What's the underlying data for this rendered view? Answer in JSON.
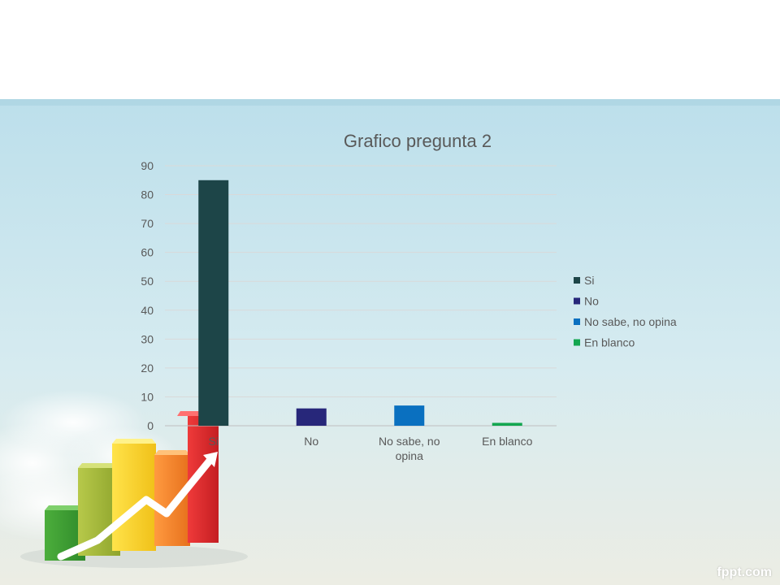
{
  "slide": {
    "brand": "fppt.com",
    "colors": {
      "sky_top": "#c3e2ee",
      "sky_bottom": "#eceee6",
      "header": "#ffffff"
    }
  },
  "chart_data": {
    "type": "bar",
    "title": "Grafico pregunta 2",
    "categories": [
      "Si",
      "No",
      "No sabe, no opina",
      "En blanco"
    ],
    "values": [
      85,
      6,
      7,
      1
    ],
    "series_colors": [
      "#1d4548",
      "#27277a",
      "#0a70c0",
      "#13a650"
    ],
    "ylim": [
      0,
      90
    ],
    "yticks": [
      0,
      10,
      20,
      30,
      40,
      50,
      60,
      70,
      80,
      90
    ],
    "grid": true,
    "legend": {
      "position": "right",
      "entries": [
        "Si",
        "No",
        "No sabe, no opina",
        "En blanco"
      ]
    },
    "xlabel": "",
    "ylabel": ""
  }
}
